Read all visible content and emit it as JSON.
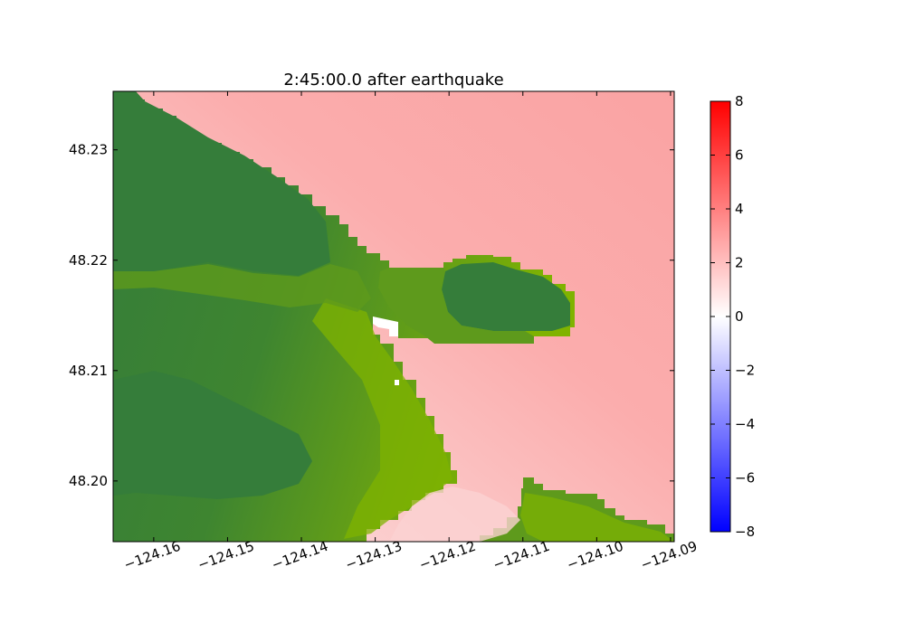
{
  "chart_data": {
    "type": "heatmap",
    "title": "2:45:00.0 after earthquake",
    "xlabel": "",
    "ylabel": "",
    "xlim": [
      -124.1655,
      -124.0895
    ],
    "ylim": [
      48.1945,
      48.2353
    ],
    "x_ticks": [
      -124.16,
      -124.15,
      -124.14,
      -124.13,
      -124.12,
      -124.11,
      -124.1,
      -124.09
    ],
    "x_tick_labels": [
      "−124.16",
      "−124.15",
      "−124.14",
      "−124.13",
      "−124.12",
      "−124.11",
      "−124.10",
      "−124.09"
    ],
    "y_ticks": [
      48.2,
      48.21,
      48.22,
      48.23
    ],
    "y_tick_labels": [
      "48.20",
      "48.21",
      "48.22",
      "48.23"
    ],
    "grid": false,
    "colorbar": {
      "vmin": -8,
      "vmax": 8,
      "ticks": [
        -8,
        -6,
        -4,
        -2,
        0,
        2,
        4,
        6,
        8
      ],
      "tick_labels": [
        "−8",
        "−6",
        "−4",
        "−2",
        "0",
        "2",
        "4",
        "6",
        "8"
      ],
      "colormap": [
        "#0000ff",
        "#ffffff",
        "#ff0000"
      ]
    },
    "land_colors": {
      "dark": "#357d3a",
      "mid": "#5e9a1c",
      "light": "#7fb300"
    },
    "water_level_range": [
      1.0,
      3.0
    ]
  }
}
